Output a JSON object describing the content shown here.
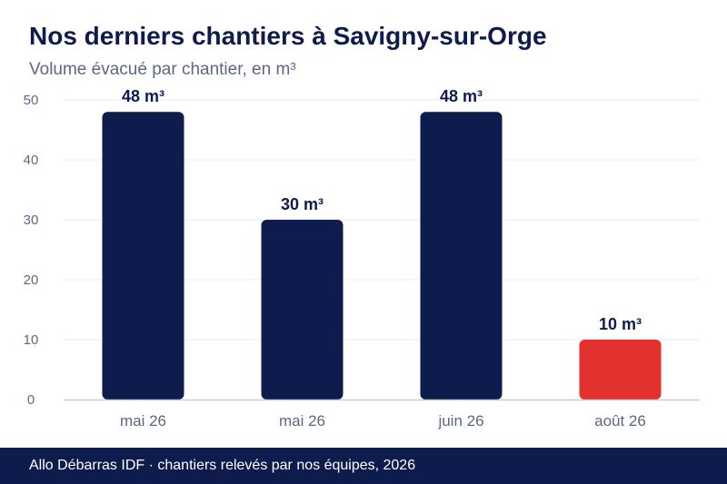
{
  "header": {
    "title": "Nos derniers chantiers à Savigny-sur-Orge",
    "subtitle": "Volume évacué par chantier, en m³"
  },
  "footer": {
    "text": "Allo Débarras IDF · chantiers relevés par nos équipes, 2026"
  },
  "colors": {
    "primary": "#0e1b4d",
    "highlight": "#e3312f",
    "grid": "#ececf2",
    "axis_text": "#5d6784"
  },
  "chart_data": {
    "type": "bar",
    "title": "Nos derniers chantiers à Savigny-sur-Orge",
    "subtitle": "Volume évacué par chantier, en m³",
    "xlabel": "",
    "ylabel": "",
    "categories": [
      "mai 26",
      "mai 26",
      "juin 26",
      "août 26"
    ],
    "values": [
      48,
      30,
      48,
      10
    ],
    "data_labels": [
      "48 m³",
      "30 m³",
      "48 m³",
      "10 m³"
    ],
    "highlight_index": 3,
    "ylim": [
      0,
      50
    ],
    "yticks": [
      0,
      10,
      20,
      30,
      40,
      50
    ],
    "grid": true,
    "legend": "none"
  }
}
